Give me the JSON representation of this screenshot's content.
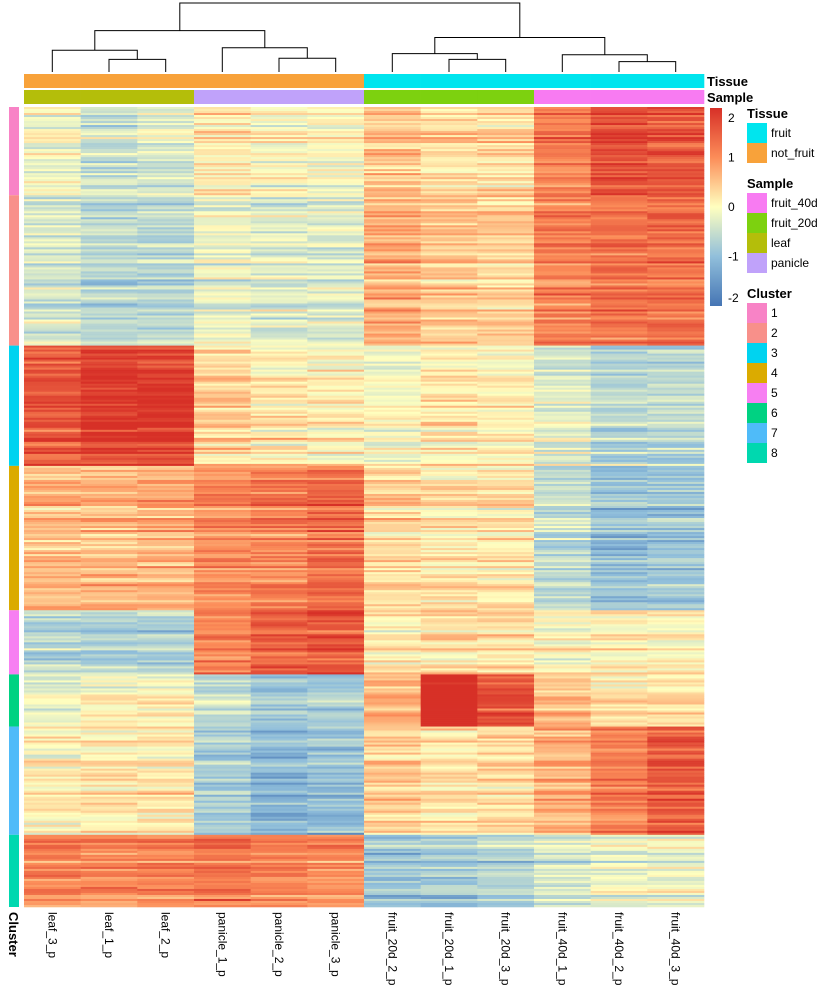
{
  "chart_data": {
    "type": "heatmap",
    "title": "",
    "columns": [
      "leaf_3_p",
      "leaf_1_p",
      "leaf_2_p",
      "panicle_1_p",
      "panicle_2_p",
      "panicle_3_p",
      "fruit_20d_2_p",
      "fruit_20d_1_p",
      "fruit_20d_3_p",
      "fruit_40d_1_p",
      "fruit_40d_2_p",
      "fruit_40d_3_p"
    ],
    "column_annotations": {
      "Tissue": [
        "not_fruit",
        "not_fruit",
        "not_fruit",
        "not_fruit",
        "not_fruit",
        "not_fruit",
        "fruit",
        "fruit",
        "fruit",
        "fruit",
        "fruit",
        "fruit"
      ],
      "Sample": [
        "leaf",
        "leaf",
        "leaf",
        "panicle",
        "panicle",
        "panicle",
        "fruit_20d",
        "fruit_20d",
        "fruit_20d",
        "fruit_40d",
        "fruit_40d",
        "fruit_40d"
      ]
    },
    "annotation_labels": {
      "tissue": "Tissue",
      "sample": "Sample",
      "cluster": "Cluster"
    },
    "row_clusters": [
      {
        "cluster": "1",
        "rows": 44,
        "means": [
          -0.1,
          -0.5,
          -0.4,
          0.2,
          0.0,
          0.0,
          0.5,
          0.3,
          0.3,
          1.1,
          1.7,
          1.6
        ]
      },
      {
        "cluster": "2",
        "rows": 75,
        "means": [
          -0.4,
          -0.6,
          -0.6,
          -0.2,
          -0.3,
          -0.3,
          0.7,
          0.5,
          0.4,
          1.1,
          1.3,
          1.3
        ]
      },
      {
        "cluster": "3",
        "rows": 60,
        "means": [
          1.6,
          1.9,
          1.9,
          0.4,
          0.2,
          0.1,
          0.0,
          0.2,
          0.1,
          -0.3,
          -0.6,
          -0.6
        ]
      },
      {
        "cluster": "4",
        "rows": 72,
        "means": [
          0.6,
          0.6,
          0.7,
          1.0,
          1.1,
          1.3,
          0.3,
          0.2,
          0.2,
          -0.6,
          -1.0,
          -0.9
        ]
      },
      {
        "cluster": "5",
        "rows": 32,
        "means": [
          -0.6,
          -0.7,
          -0.7,
          1.1,
          1.5,
          1.6,
          0.2,
          0.3,
          0.3,
          0.0,
          0.1,
          0.1
        ]
      },
      {
        "cluster": "6",
        "rows": 26,
        "means": [
          -0.2,
          0.0,
          0.0,
          -0.6,
          -0.9,
          -0.9,
          0.6,
          2.2,
          1.6,
          0.5,
          0.2,
          0.2
        ]
      },
      {
        "cluster": "7",
        "rows": 54,
        "means": [
          0.1,
          0.2,
          0.2,
          -0.8,
          -1.1,
          -1.0,
          0.4,
          0.2,
          0.3,
          0.7,
          1.2,
          1.5
        ]
      },
      {
        "cluster": "8",
        "rows": 36,
        "means": [
          1.1,
          1.0,
          1.1,
          1.2,
          1.1,
          1.0,
          -0.9,
          -0.8,
          -0.7,
          -0.4,
          -0.2,
          -0.2
        ]
      }
    ],
    "color_scale": {
      "min": -2,
      "max": 2,
      "ticks": [
        2,
        1,
        0,
        -1,
        -2
      ],
      "colors": [
        "#4575b4",
        "#91bfdb",
        "#ffffbf",
        "#fc8d59",
        "#d73027"
      ]
    },
    "column_dendrogram": {
      "leaf_order": [
        "leaf_3_p",
        "leaf_1_p",
        "leaf_2_p",
        "panicle_1_p",
        "panicle_2_p",
        "panicle_3_p",
        "fruit_20d_2_p",
        "fruit_20d_1_p",
        "fruit_20d_3_p",
        "fruit_40d_1_p",
        "fruit_40d_2_p",
        "fruit_40d_3_p"
      ],
      "merges": [
        [
          1,
          2,
          0.55
        ],
        [
          0,
          -1,
          0.95
        ],
        [
          4,
          5,
          0.6
        ],
        [
          3,
          -3,
          1.05
        ],
        [
          -2,
          -4,
          1.8
        ],
        [
          7,
          8,
          0.55
        ],
        [
          6,
          -6,
          0.8
        ],
        [
          10,
          11,
          0.45
        ],
        [
          9,
          -8,
          0.75
        ],
        [
          -7,
          -9,
          1.5
        ],
        [
          -5,
          -10,
          3.0
        ]
      ]
    }
  },
  "legend": {
    "tissue": {
      "title": "Tissue",
      "items": [
        {
          "label": "fruit",
          "color": "#00E5EE"
        },
        {
          "label": "not_fruit",
          "color": "#F8A23A"
        }
      ]
    },
    "sample": {
      "title": "Sample",
      "items": [
        {
          "label": "fruit_40d",
          "color": "#F87BF2"
        },
        {
          "label": "fruit_20d",
          "color": "#7DD10F"
        },
        {
          "label": "leaf",
          "color": "#B4BE0A"
        },
        {
          "label": "panicle",
          "color": "#C0A2FA"
        }
      ]
    },
    "cluster": {
      "title": "Cluster",
      "items": [
        {
          "label": "1",
          "color": "#F883C6"
        },
        {
          "label": "2",
          "color": "#F8908A"
        },
        {
          "label": "3",
          "color": "#00D3F0"
        },
        {
          "label": "4",
          "color": "#DBAB00"
        },
        {
          "label": "5",
          "color": "#F77FF2"
        },
        {
          "label": "6",
          "color": "#00D282"
        },
        {
          "label": "7",
          "color": "#4FBBF9"
        },
        {
          "label": "8",
          "color": "#00D8AF"
        }
      ]
    }
  }
}
